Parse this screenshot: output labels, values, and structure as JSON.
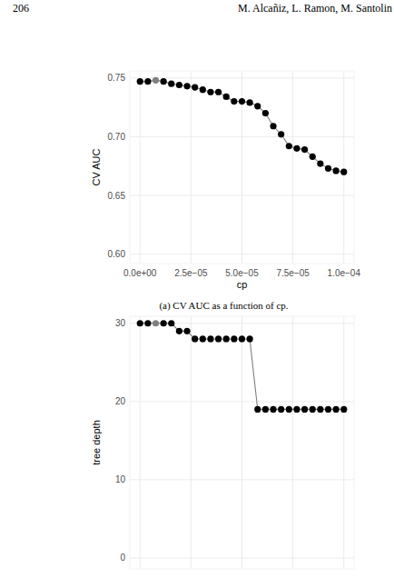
{
  "header": {
    "page_number": "206",
    "authors": "M. Alcañiz, L. Ramon, M. Santolin"
  },
  "chart_data": [
    {
      "type": "line",
      "caption": "(a) CV AUC as a function of cp.",
      "x_label": "cp",
      "y_label": "CV AUC",
      "x": [
        0,
        3.85e-06,
        7.69e-06,
        1.154e-05,
        1.538e-05,
        1.923e-05,
        2.308e-05,
        2.692e-05,
        3.077e-05,
        3.462e-05,
        3.846e-05,
        4.231e-05,
        4.615e-05,
        5e-05,
        5.385e-05,
        5.769e-05,
        6.154e-05,
        6.538e-05,
        6.923e-05,
        7.308e-05,
        7.692e-05,
        8.077e-05,
        8.462e-05,
        8.846e-05,
        9.231e-05,
        9.615e-05,
        0.0001
      ],
      "series": [
        {
          "values": [
            0.747,
            0.747,
            0.748,
            0.747,
            0.745,
            0.744,
            0.743,
            0.742,
            0.74,
            0.738,
            0.738,
            0.734,
            0.73,
            0.73,
            0.729,
            0.726,
            0.72,
            0.709,
            0.702,
            0.692,
            0.69,
            0.689,
            0.683,
            0.677,
            0.673,
            0.671,
            0.67
          ],
          "colors": [
            "#000000",
            "#000000",
            "#808080",
            "#000000",
            "#000000",
            "#000000",
            "#000000",
            "#000000",
            "#000000",
            "#000000",
            "#000000",
            "#000000",
            "#000000",
            "#000000",
            "#000000",
            "#000000",
            "#000000",
            "#000000",
            "#000000",
            "#000000",
            "#000000",
            "#000000",
            "#000000",
            "#000000",
            "#000000",
            "#000000",
            "#000000"
          ],
          "marker": "circle"
        }
      ],
      "xlim": [
        -5e-06,
        0.000105
      ],
      "xticks": [
        {
          "value": 0,
          "label": "0.0e+00"
        },
        {
          "value": 2.5e-05,
          "label": "2.5e−05"
        },
        {
          "value": 5e-05,
          "label": "5.0e−05"
        },
        {
          "value": 7.5e-05,
          "label": "7.5e−05"
        },
        {
          "value": 0.0001,
          "label": "1.0e−04"
        }
      ],
      "ylim": [
        0.592,
        0.756
      ],
      "yticks": [
        {
          "value": 0.6,
          "label": "0.60"
        },
        0.65,
        {
          "value": 0.7,
          "label": "0.70"
        },
        0.75
      ],
      "grid": true
    },
    {
      "type": "line",
      "y_label": "tree depth",
      "x": [
        0,
        3.85e-06,
        7.69e-06,
        1.154e-05,
        1.538e-05,
        1.923e-05,
        2.308e-05,
        2.692e-05,
        3.077e-05,
        3.462e-05,
        3.846e-05,
        4.231e-05,
        4.615e-05,
        5e-05,
        5.385e-05,
        5.769e-05,
        6.154e-05,
        6.538e-05,
        6.923e-05,
        7.308e-05,
        7.692e-05,
        8.077e-05,
        8.462e-05,
        8.846e-05,
        9.231e-05,
        9.615e-05,
        0.0001
      ],
      "series": [
        {
          "values": [
            30,
            30,
            30,
            30,
            30,
            29,
            29,
            28,
            28,
            28,
            28,
            28,
            28,
            28,
            28,
            19,
            19,
            19,
            19,
            19,
            19,
            19,
            19,
            19,
            19,
            19,
            19
          ],
          "colors": [
            "#000000",
            "#000000",
            "#808080",
            "#000000",
            "#000000",
            "#000000",
            "#000000",
            "#000000",
            "#000000",
            "#000000",
            "#000000",
            "#000000",
            "#000000",
            "#000000",
            "#000000",
            "#000000",
            "#000000",
            "#000000",
            "#000000",
            "#000000",
            "#000000",
            "#000000",
            "#000000",
            "#000000",
            "#000000",
            "#000000",
            "#000000"
          ],
          "marker": "circle"
        }
      ],
      "xlim": [
        -5e-06,
        0.000105
      ],
      "xticks": [
        0,
        2.5e-05,
        5e-05,
        7.5e-05,
        0.0001
      ],
      "ylim": [
        -1.4,
        30.9
      ],
      "yticks": [
        0,
        10,
        20,
        30
      ],
      "tick_labels": "y",
      "grid": true
    }
  ]
}
